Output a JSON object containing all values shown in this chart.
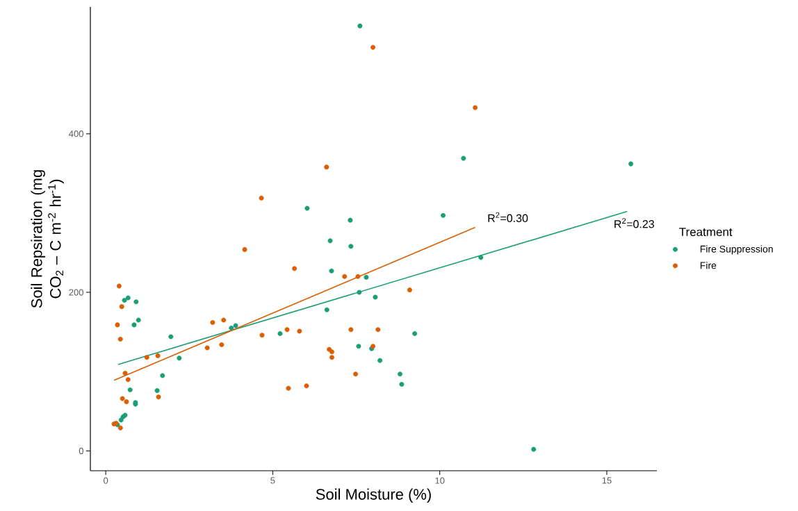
{
  "chart_data": {
    "type": "scatter",
    "xlabel": "Soil Moisture (%)",
    "ylabel": "Soil Repsiration (mg CO$_{2}$ – C m$^{-2}$ hr$^{-1}$)",
    "legend_title": "Treatment",
    "xlim": [
      -0.46,
      16.5
    ],
    "ylim": [
      -25,
      560
    ],
    "xticks": [
      0,
      5,
      10,
      15
    ],
    "yticks": [
      0,
      200,
      400
    ],
    "grid": false,
    "legend": "right",
    "line_style": "solid",
    "series": [
      {
        "name": "Fire Suppression",
        "marker": "circle",
        "color": "#1b9e77",
        "x": [
          7.61,
          10.71,
          15.72,
          6.03,
          10.1,
          7.32,
          6.72,
          7.34,
          6.76,
          7.8,
          7.59,
          8.07,
          6.62,
          11.23,
          5.22,
          9.25,
          7.57,
          7.96,
          8.21,
          8.81,
          8.86,
          12.81,
          3.76,
          3.89,
          0.56,
          0.67,
          0.91,
          0.98,
          0.85,
          1.95,
          2.2,
          1.7,
          0.73,
          1.54,
          0.89,
          0.89,
          0.58,
          0.52,
          0.46,
          0.35
        ],
        "values": [
          536,
          369,
          362,
          306,
          297,
          291,
          265,
          258,
          227,
          219,
          200,
          194,
          178,
          244,
          148,
          148,
          132,
          129,
          114,
          97,
          84,
          2,
          155,
          158,
          190,
          193,
          188,
          165,
          159,
          144,
          117,
          95,
          77,
          76,
          61,
          59,
          45,
          43,
          39,
          33
        ]
      },
      {
        "name": "Fire",
        "marker": "circle",
        "color": "#d95f02",
        "x": [
          8.0,
          11.06,
          6.61,
          4.66,
          4.16,
          5.65,
          7.15,
          7.55,
          9.1,
          3.2,
          3.53,
          4.68,
          5.43,
          5.8,
          7.34,
          8.15,
          3.47,
          3.04,
          6.69,
          6.77,
          6.77,
          8.0,
          7.48,
          5.47,
          6.01,
          0.4,
          0.48,
          0.35,
          0.44,
          1.23,
          1.56,
          0.58,
          0.67,
          0.5,
          0.62,
          1.58,
          0.25,
          0.31,
          0.44
        ],
        "values": [
          509,
          433,
          358,
          319,
          254,
          230,
          220,
          220,
          203,
          162,
          165,
          146,
          153,
          151,
          153,
          153,
          134,
          130,
          128,
          125,
          118,
          132,
          97,
          79,
          82,
          208,
          182,
          159,
          141,
          118,
          120,
          98,
          90,
          66,
          62,
          68,
          34,
          35,
          29
        ]
      },
      {
        "type": "line",
        "marker": "none",
        "color": "#1b9e77",
        "x": [
          0.37,
          15.61
        ],
        "values": [
          109,
          302
        ]
      },
      {
        "type": "line",
        "marker": "none",
        "color": "#d95f02",
        "x": [
          0.25,
          11.06
        ],
        "values": [
          89,
          282
        ]
      }
    ],
    "annotations": [
      "R$^{2}$=0.30",
      "R$^{2}$=0.23"
    ]
  }
}
